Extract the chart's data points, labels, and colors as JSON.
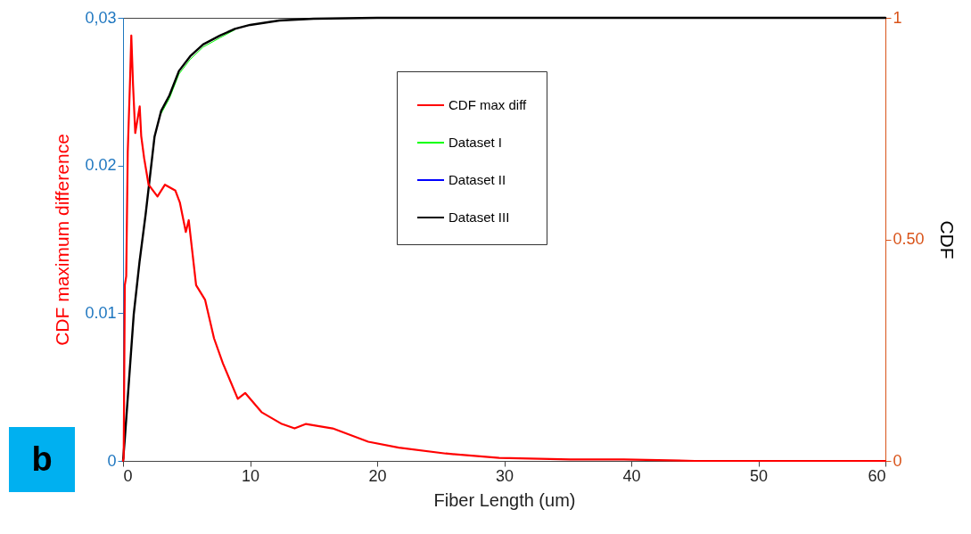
{
  "chart_data": {
    "type": "line",
    "xlabel": "Fiber Length (um)",
    "ylabel": "CDF maximum difference",
    "y2label": "CDF",
    "xlim": [
      0,
      60
    ],
    "xticks": [
      0,
      10,
      20,
      30,
      40,
      50,
      60
    ],
    "ylim": [
      0,
      0.03
    ],
    "yticks": [
      0,
      0.01,
      0.02,
      {
        "value": 0.03,
        "label": "0,03"
      }
    ],
    "y2lim": [
      0,
      1
    ],
    "y2ticks": [
      0,
      {
        "value": 0.5,
        "label": "0.50"
      },
      1
    ],
    "grid": false,
    "legend": "top right",
    "annotations": [
      "b"
    ],
    "series": [
      {
        "name": "CDF max diff",
        "color": "#ff0000",
        "x": [
          0,
          0.05,
          0.14,
          0.25,
          0.37,
          0.56,
          0.65,
          0.79,
          0.96,
          1.31,
          1.43,
          1.66,
          2.01,
          2.71,
          3.3,
          4.12,
          4.47,
          4.94,
          5.17,
          5.75,
          6.46,
          7.16,
          7.86,
          9.03,
          9.61,
          10.9,
          12.5,
          13.5,
          14.4,
          16.5,
          19.3,
          21.7,
          25.4,
          29.6,
          35.2,
          39.4,
          45,
          60
        ],
        "values": [
          0,
          0.0002,
          0.0119,
          0.0125,
          0.0209,
          0.026,
          0.0288,
          0.0254,
          0.0222,
          0.024,
          0.022,
          0.0205,
          0.0187,
          0.0179,
          0.0187,
          0.0183,
          0.0175,
          0.0155,
          0.0163,
          0.0119,
          0.0109,
          0.0083,
          0.0066,
          0.0042,
          0.0046,
          0.0033,
          0.0025,
          0.0022,
          0.0025,
          0.0022,
          0.0013,
          0.0009,
          0.0005,
          0.0002,
          0.0001,
          0.0001,
          0,
          0
        ]
      },
      {
        "name": "Dataset I",
        "color": "#00ff00",
        "axis": "y2",
        "x": [
          3.0,
          3.65,
          4.4,
          5.28,
          6.3,
          7.63,
          8.8
        ],
        "values": [
          0.784,
          0.818,
          0.873,
          0.906,
          0.934,
          0.955,
          0.973
        ]
      },
      {
        "name": "Dataset II",
        "color": "#0000ff",
        "axis": "y2"
      },
      {
        "name": "Dataset III",
        "color": "#000000",
        "axis": "y2",
        "x": [
          0,
          0.14,
          0.84,
          1.3,
          1.78,
          2.48,
          3.0,
          3.65,
          4.4,
          5.28,
          6.3,
          7.63,
          8.8,
          10,
          12.3,
          15,
          20,
          30,
          60
        ],
        "values": [
          0,
          0.05,
          0.33,
          0.45,
          0.557,
          0.732,
          0.79,
          0.825,
          0.88,
          0.913,
          0.94,
          0.96,
          0.975,
          0.984,
          0.994,
          0.998,
          1,
          1,
          1
        ]
      }
    ]
  }
}
